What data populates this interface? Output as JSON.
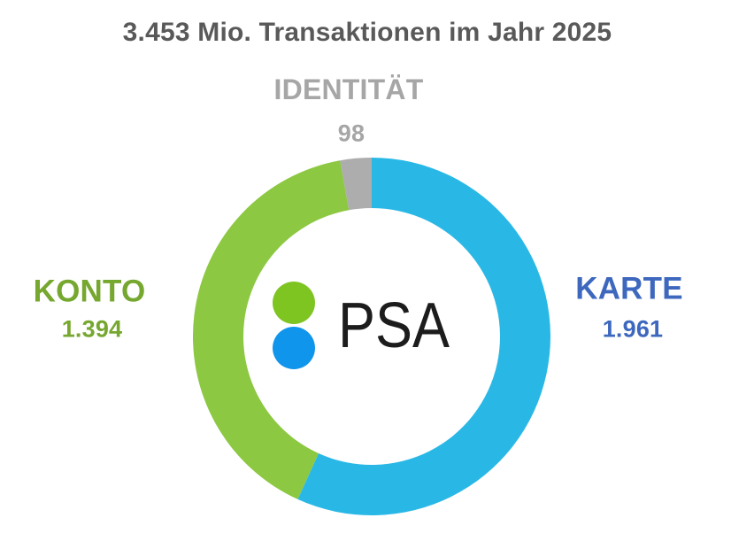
{
  "title": "3.453 Mio. Transaktionen im Jahr 2025",
  "logo": {
    "text": "PSA",
    "dot_top_color": "#7EC522",
    "dot_bottom_color": "#1095EC"
  },
  "labels": {
    "identitaet": {
      "name": "IDENTITÄT",
      "value": "98",
      "color": "#A6A6A6"
    },
    "karte": {
      "name": "KARTE",
      "value": "1.961",
      "color": "#3D68BE"
    },
    "konto": {
      "name": "KONTO",
      "value": "1.394",
      "color": "#76A72F"
    }
  },
  "chart_data": {
    "type": "pie",
    "subtype": "donut",
    "title": "3.453 Mio. Transaktionen im Jahr 2025",
    "total": 3453,
    "total_display": "3.453 Mio.",
    "unit": "Mio. Transaktionen",
    "year": "2025",
    "start_angle_deg": 0,
    "direction": "clockwise",
    "segments": [
      {
        "label": "KARTE",
        "value": 1961,
        "display_value": "1.961",
        "color": "#29B8E6"
      },
      {
        "label": "KONTO",
        "value": 1394,
        "display_value": "1.394",
        "color": "#8CC841"
      },
      {
        "label": "IDENTITÄT",
        "value": 98,
        "display_value": "98",
        "color": "#ADADAD"
      }
    ],
    "center_label": "PSA",
    "legend_position": "outside-labels"
  }
}
